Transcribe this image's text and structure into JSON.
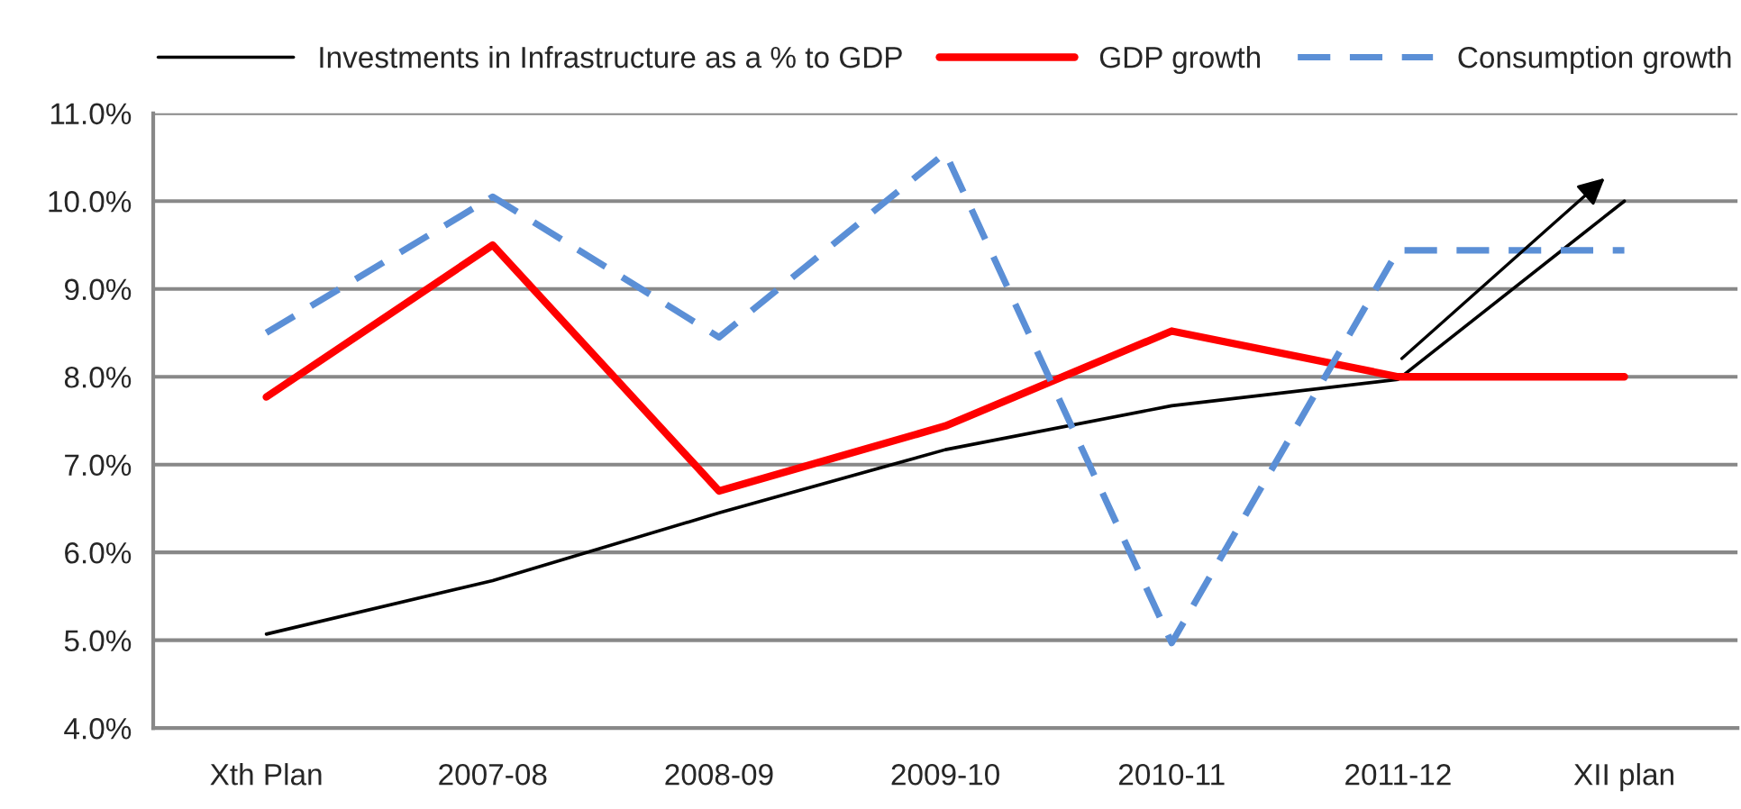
{
  "chart_data": {
    "type": "line",
    "categories": [
      "Xth Plan",
      "2007-08",
      "2008-09",
      "2009-10",
      "2010-11",
      "2011-12",
      "XII plan"
    ],
    "series": [
      {
        "name": "Investments in Infrastructure as a % to GDP",
        "color": "#000000",
        "line_style": "solid",
        "values": [
          5.07,
          5.68,
          6.45,
          7.17,
          7.67,
          7.97,
          10.0
        ]
      },
      {
        "name": "GDP growth",
        "color": "#ff0000",
        "line_style": "solid",
        "values": [
          7.77,
          9.5,
          6.7,
          7.44,
          8.52,
          8.0,
          8.0
        ]
      },
      {
        "name": "Consumption growth",
        "color": "#5b8fd6",
        "line_style": "dashed",
        "values": [
          8.5,
          10.05,
          8.45,
          10.55,
          4.97,
          9.44,
          9.44
        ]
      }
    ],
    "ylim": [
      4,
      11
    ],
    "yticks": [
      {
        "value": 4,
        "label": "4.0%"
      },
      {
        "value": 5,
        "label": "5.0%"
      },
      {
        "value": 6,
        "label": "6.0%"
      },
      {
        "value": 7,
        "label": "7.0%"
      },
      {
        "value": 8,
        "label": "8.0%"
      },
      {
        "value": 9,
        "label": "9.0%"
      },
      {
        "value": 10,
        "label": "10.0%"
      },
      {
        "value": 11,
        "label": "11.0%"
      }
    ],
    "grid": "y",
    "legend": "top",
    "marker": "none"
  }
}
